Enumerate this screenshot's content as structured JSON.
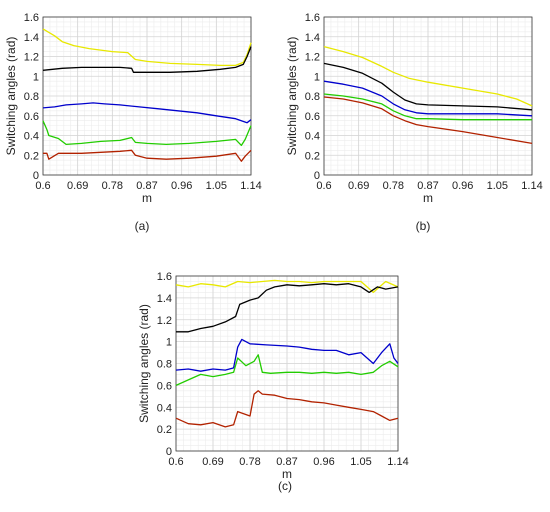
{
  "chart_data": [
    {
      "type": "line",
      "panel_label": "(a)",
      "xlabel": "m",
      "ylabel": "Switching angles (rad)",
      "xlim": [
        0.6,
        1.14
      ],
      "ylim": [
        0,
        1.6
      ],
      "x_ticks": [
        "0.6",
        "0.69",
        "0.78",
        "0.87",
        "0.96",
        "1.05",
        "1.14"
      ],
      "y_ticks": [
        "0",
        "0.2",
        "0.4",
        "0.6",
        "0.8",
        "1",
        "1.2",
        "1.4",
        "1.6"
      ],
      "grid": true,
      "series": [
        {
          "color": "#e8e800",
          "x": [
            0.6,
            0.63,
            0.65,
            0.68,
            0.72,
            0.78,
            0.82,
            0.84,
            0.87,
            0.93,
            1.0,
            1.06,
            1.1,
            1.12,
            1.13,
            1.14
          ],
          "y": [
            1.48,
            1.41,
            1.35,
            1.31,
            1.28,
            1.25,
            1.24,
            1.17,
            1.15,
            1.13,
            1.12,
            1.11,
            1.11,
            1.14,
            1.22,
            1.34
          ]
        },
        {
          "color": "#000000",
          "x": [
            0.6,
            0.65,
            0.7,
            0.75,
            0.8,
            0.83,
            0.835,
            0.87,
            0.93,
            1.0,
            1.06,
            1.1,
            1.12,
            1.13,
            1.14
          ],
          "y": [
            1.06,
            1.08,
            1.09,
            1.09,
            1.09,
            1.08,
            1.04,
            1.04,
            1.04,
            1.05,
            1.07,
            1.09,
            1.12,
            1.2,
            1.3
          ]
        },
        {
          "color": "#0000cc",
          "x": [
            0.6,
            0.63,
            0.66,
            0.7,
            0.73,
            0.76,
            0.8,
            0.85,
            0.9,
            0.95,
            1.0,
            1.05,
            1.1,
            1.13,
            1.14
          ],
          "y": [
            0.68,
            0.69,
            0.71,
            0.72,
            0.73,
            0.72,
            0.71,
            0.69,
            0.67,
            0.65,
            0.63,
            0.6,
            0.57,
            0.53,
            0.56
          ]
        },
        {
          "color": "#22cc00",
          "x": [
            0.6,
            0.61,
            0.615,
            0.64,
            0.66,
            0.7,
            0.75,
            0.8,
            0.83,
            0.84,
            0.87,
            0.92,
            0.98,
            1.05,
            1.1,
            1.115,
            1.125,
            1.14
          ],
          "y": [
            0.55,
            0.46,
            0.4,
            0.37,
            0.31,
            0.32,
            0.34,
            0.35,
            0.38,
            0.33,
            0.32,
            0.31,
            0.32,
            0.34,
            0.36,
            0.3,
            0.36,
            0.5
          ]
        },
        {
          "color": "#b22200",
          "x": [
            0.6,
            0.61,
            0.615,
            0.64,
            0.66,
            0.7,
            0.75,
            0.8,
            0.83,
            0.84,
            0.87,
            0.92,
            0.98,
            1.05,
            1.1,
            1.115,
            1.125,
            1.14
          ],
          "y": [
            0.22,
            0.22,
            0.16,
            0.22,
            0.22,
            0.22,
            0.23,
            0.24,
            0.25,
            0.2,
            0.17,
            0.16,
            0.17,
            0.19,
            0.22,
            0.14,
            0.19,
            0.25
          ]
        }
      ]
    },
    {
      "type": "line",
      "panel_label": "(b)",
      "xlabel": "m",
      "ylabel": "Switching angles (rad)",
      "xlim": [
        0.6,
        1.14
      ],
      "ylim": [
        0,
        1.6
      ],
      "x_ticks": [
        "0.6",
        "0.69",
        "0.78",
        "0.87",
        "0.96",
        "1.05",
        "1.14"
      ],
      "y_ticks": [
        "0",
        "0.2",
        "0.4",
        "0.6",
        "0.8",
        "1",
        "1.2",
        "1.4",
        "1.6"
      ],
      "grid": true,
      "series": [
        {
          "color": "#e8e800",
          "x": [
            0.6,
            0.65,
            0.7,
            0.75,
            0.78,
            0.82,
            0.87,
            0.96,
            1.05,
            1.1,
            1.14
          ],
          "y": [
            1.3,
            1.25,
            1.19,
            1.1,
            1.04,
            0.98,
            0.94,
            0.88,
            0.82,
            0.77,
            0.7
          ]
        },
        {
          "color": "#000000",
          "x": [
            0.6,
            0.65,
            0.7,
            0.75,
            0.78,
            0.81,
            0.84,
            0.87,
            0.96,
            1.05,
            1.14
          ],
          "y": [
            1.13,
            1.09,
            1.03,
            0.93,
            0.84,
            0.76,
            0.72,
            0.71,
            0.7,
            0.69,
            0.66
          ]
        },
        {
          "color": "#0000cc",
          "x": [
            0.6,
            0.65,
            0.7,
            0.75,
            0.78,
            0.81,
            0.84,
            0.87,
            0.96,
            1.05,
            1.14
          ],
          "y": [
            0.95,
            0.92,
            0.88,
            0.8,
            0.72,
            0.66,
            0.63,
            0.62,
            0.62,
            0.62,
            0.6
          ]
        },
        {
          "color": "#22cc00",
          "x": [
            0.6,
            0.65,
            0.7,
            0.75,
            0.78,
            0.81,
            0.84,
            0.87,
            0.96,
            1.05,
            1.14
          ],
          "y": [
            0.82,
            0.8,
            0.77,
            0.72,
            0.65,
            0.6,
            0.57,
            0.57,
            0.56,
            0.56,
            0.56
          ]
        },
        {
          "color": "#b22200",
          "x": [
            0.6,
            0.65,
            0.7,
            0.75,
            0.78,
            0.81,
            0.84,
            0.87,
            0.96,
            1.05,
            1.14
          ],
          "y": [
            0.79,
            0.77,
            0.73,
            0.67,
            0.6,
            0.55,
            0.51,
            0.49,
            0.44,
            0.38,
            0.32
          ]
        }
      ]
    },
    {
      "type": "line",
      "panel_label": "(c)",
      "xlabel": "m",
      "ylabel": "Switching angles (rad)",
      "xlim": [
        0.6,
        1.14
      ],
      "ylim": [
        0,
        1.6
      ],
      "x_ticks": [
        "0.6",
        "0.69",
        "0.78",
        "0.87",
        "0.96",
        "1.05",
        "1.14"
      ],
      "y_ticks": [
        "0",
        "0.2",
        "0.4",
        "0.6",
        "0.8",
        "1",
        "1.2",
        "1.4",
        "1.6"
      ],
      "grid": true,
      "series": [
        {
          "color": "#e8e800",
          "x": [
            0.6,
            0.63,
            0.66,
            0.69,
            0.72,
            0.75,
            0.78,
            0.81,
            0.84,
            0.87,
            0.9,
            0.93,
            0.96,
            0.99,
            1.02,
            1.05,
            1.08,
            1.11,
            1.14
          ],
          "y": [
            1.52,
            1.5,
            1.53,
            1.52,
            1.5,
            1.55,
            1.54,
            1.55,
            1.56,
            1.55,
            1.55,
            1.54,
            1.55,
            1.55,
            1.55,
            1.55,
            1.45,
            1.55,
            1.5
          ]
        },
        {
          "color": "#000000",
          "x": [
            0.6,
            0.63,
            0.66,
            0.69,
            0.72,
            0.745,
            0.755,
            0.78,
            0.8,
            0.82,
            0.84,
            0.87,
            0.9,
            0.93,
            0.96,
            0.99,
            1.02,
            1.05,
            1.07,
            1.09,
            1.11,
            1.14
          ],
          "y": [
            1.09,
            1.09,
            1.12,
            1.14,
            1.18,
            1.23,
            1.34,
            1.38,
            1.4,
            1.47,
            1.5,
            1.52,
            1.51,
            1.52,
            1.53,
            1.52,
            1.53,
            1.5,
            1.45,
            1.5,
            1.48,
            1.5
          ]
        },
        {
          "color": "#0000cc",
          "x": [
            0.6,
            0.63,
            0.66,
            0.69,
            0.72,
            0.74,
            0.75,
            0.76,
            0.78,
            0.82,
            0.87,
            0.9,
            0.93,
            0.96,
            0.99,
            1.02,
            1.05,
            1.08,
            1.1,
            1.12,
            1.13,
            1.14
          ],
          "y": [
            0.74,
            0.75,
            0.73,
            0.75,
            0.74,
            0.76,
            0.95,
            1.02,
            0.98,
            0.97,
            0.96,
            0.95,
            0.93,
            0.92,
            0.92,
            0.88,
            0.9,
            0.8,
            0.9,
            0.98,
            0.85,
            0.8
          ]
        },
        {
          "color": "#22cc00",
          "x": [
            0.6,
            0.63,
            0.66,
            0.69,
            0.72,
            0.74,
            0.75,
            0.77,
            0.79,
            0.8,
            0.81,
            0.83,
            0.87,
            0.9,
            0.93,
            0.96,
            0.99,
            1.02,
            1.05,
            1.08,
            1.1,
            1.12,
            1.14
          ],
          "y": [
            0.6,
            0.65,
            0.7,
            0.68,
            0.7,
            0.72,
            0.85,
            0.78,
            0.82,
            0.88,
            0.72,
            0.71,
            0.72,
            0.72,
            0.71,
            0.72,
            0.71,
            0.72,
            0.7,
            0.72,
            0.78,
            0.82,
            0.77
          ]
        },
        {
          "color": "#b22200",
          "x": [
            0.6,
            0.63,
            0.66,
            0.69,
            0.72,
            0.74,
            0.75,
            0.78,
            0.79,
            0.8,
            0.81,
            0.84,
            0.87,
            0.9,
            0.93,
            0.96,
            0.99,
            1.02,
            1.05,
            1.08,
            1.1,
            1.12,
            1.14
          ],
          "y": [
            0.3,
            0.25,
            0.24,
            0.26,
            0.22,
            0.24,
            0.36,
            0.32,
            0.52,
            0.55,
            0.52,
            0.51,
            0.48,
            0.47,
            0.45,
            0.44,
            0.42,
            0.4,
            0.38,
            0.36,
            0.32,
            0.28,
            0.3
          ]
        }
      ]
    }
  ]
}
